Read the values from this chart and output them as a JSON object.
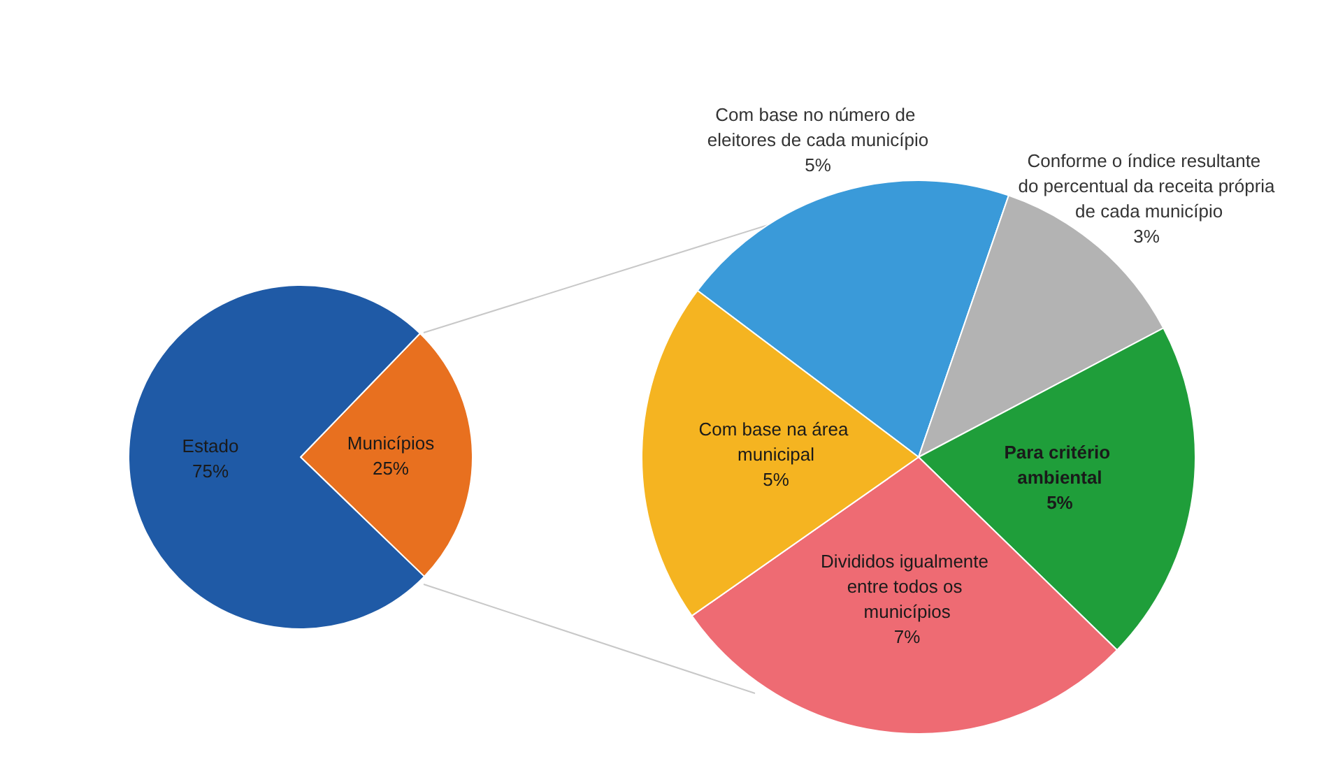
{
  "chart_data": [
    {
      "type": "pie",
      "categories": [
        "Municípios",
        "Estado"
      ],
      "values": [
        25,
        75
      ],
      "colors": [
        "#e8701f",
        "#1f5aa6"
      ],
      "value_labels": [
        "25%",
        "75%"
      ]
    },
    {
      "type": "pie",
      "categories": [
        "Com base no número de eleitores de cada município",
        "Conforme o índice resultante do percentual da receita própria de cada município",
        "Para critério ambiental",
        "Divididos igualmente entre todos os municípios",
        "Com base na área municipal"
      ],
      "values": [
        5,
        3,
        5,
        7,
        5
      ],
      "colors": [
        "#3a9ad9",
        "#b3b3b3",
        "#1f9e3a",
        "#ee6b73",
        "#f5b421"
      ],
      "value_labels": [
        "5%",
        "3%",
        "5%",
        "7%",
        "5%"
      ]
    }
  ]
}
